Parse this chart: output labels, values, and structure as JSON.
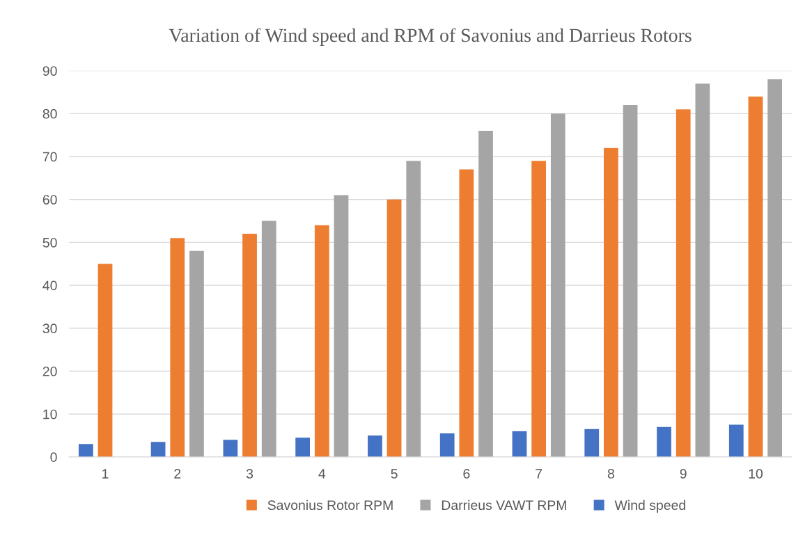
{
  "chart_data": {
    "type": "bar",
    "title": "Variation of Wind speed and RPM of Savonius and Darrieus Rotors",
    "categories": [
      "1",
      "2",
      "3",
      "4",
      "5",
      "6",
      "7",
      "8",
      "9",
      "10"
    ],
    "series": [
      {
        "name": "Wind speed",
        "color": "#4472c4",
        "values": [
          3,
          3.5,
          4,
          4.5,
          5,
          5.5,
          6,
          6.5,
          7,
          7.5
        ]
      },
      {
        "name": "Savonius Rotor RPM",
        "color": "#ed7d31",
        "values": [
          45,
          51,
          52,
          54,
          60,
          67,
          69,
          72,
          81,
          84
        ]
      },
      {
        "name": "Darrieus VAWT RPM",
        "color": "#a5a5a5",
        "values": [
          null,
          48,
          55,
          61,
          69,
          76,
          80,
          82,
          87,
          88
        ]
      }
    ],
    "ylim": [
      0,
      90
    ],
    "yticks": [
      0,
      10,
      20,
      30,
      40,
      50,
      60,
      70,
      80,
      90
    ],
    "grid": "y",
    "legend": "bottom"
  }
}
